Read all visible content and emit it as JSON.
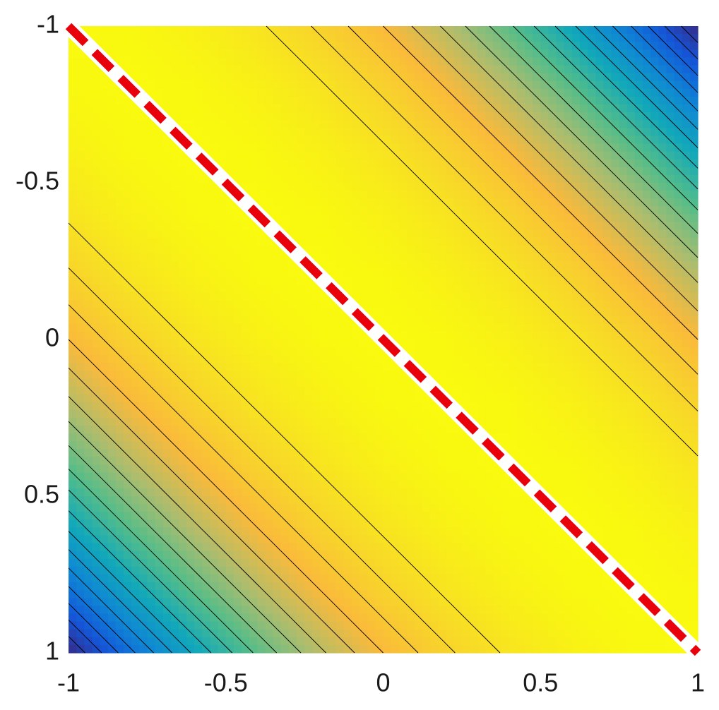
{
  "chart_data": {
    "type": "contour",
    "x": [
      -1,
      -0.8,
      -0.6,
      -0.4,
      -0.2,
      0,
      0.2,
      0.4,
      0.6,
      0.8,
      1
    ],
    "y": [
      -1,
      -0.8,
      -0.6,
      -0.4,
      -0.2,
      0,
      0.2,
      0.4,
      0.6,
      0.8,
      1
    ],
    "z": [
      [
        1,
        0.99,
        0.96,
        0.91,
        0.84,
        0.75,
        0.64,
        0.51,
        0.36,
        0.19,
        0
      ],
      [
        0.99,
        1,
        0.99,
        0.96,
        0.91,
        0.84,
        0.75,
        0.64,
        0.51,
        0.36,
        0.19
      ],
      [
        0.96,
        0.99,
        1,
        0.99,
        0.96,
        0.91,
        0.84,
        0.75,
        0.64,
        0.51,
        0.36
      ],
      [
        0.91,
        0.96,
        0.99,
        1,
        0.99,
        0.96,
        0.91,
        0.84,
        0.75,
        0.64,
        0.51
      ],
      [
        0.84,
        0.91,
        0.96,
        0.99,
        1,
        0.99,
        0.96,
        0.91,
        0.84,
        0.75,
        0.64
      ],
      [
        0.75,
        0.84,
        0.91,
        0.96,
        0.99,
        1,
        0.99,
        0.96,
        0.91,
        0.84,
        0.75
      ],
      [
        0.64,
        0.75,
        0.84,
        0.91,
        0.96,
        0.99,
        1,
        0.99,
        0.96,
        0.91,
        0.84
      ],
      [
        0.51,
        0.64,
        0.75,
        0.84,
        0.91,
        0.96,
        0.99,
        1,
        0.99,
        0.96,
        0.91
      ],
      [
        0.36,
        0.51,
        0.64,
        0.75,
        0.84,
        0.91,
        0.96,
        0.99,
        1,
        0.99,
        0.96
      ],
      [
        0.19,
        0.36,
        0.51,
        0.64,
        0.75,
        0.84,
        0.91,
        0.96,
        0.99,
        1,
        0.99
      ],
      [
        0,
        0.19,
        0.36,
        0.51,
        0.64,
        0.75,
        0.84,
        0.91,
        0.96,
        0.99,
        1
      ]
    ],
    "levels": [
      0.05,
      0.1,
      0.15,
      0.2,
      0.25,
      0.3,
      0.35,
      0.4,
      0.45,
      0.5,
      0.55,
      0.6,
      0.65,
      0.7,
      0.75,
      0.8,
      0.85,
      0.9
    ],
    "colormap": "parula",
    "clim": [
      0,
      1
    ],
    "xlim": [
      -1,
      1
    ],
    "ylim": [
      -1,
      1
    ],
    "ydir": "reverse",
    "xticks": [
      -1,
      -0.5,
      0,
      0.5,
      1
    ],
    "yticks": [
      -1,
      -0.5,
      0,
      0.5,
      1
    ],
    "overlay": {
      "x": [
        -1,
        1
      ],
      "y": [
        -1,
        1
      ],
      "color": "#e8000b"
    }
  }
}
